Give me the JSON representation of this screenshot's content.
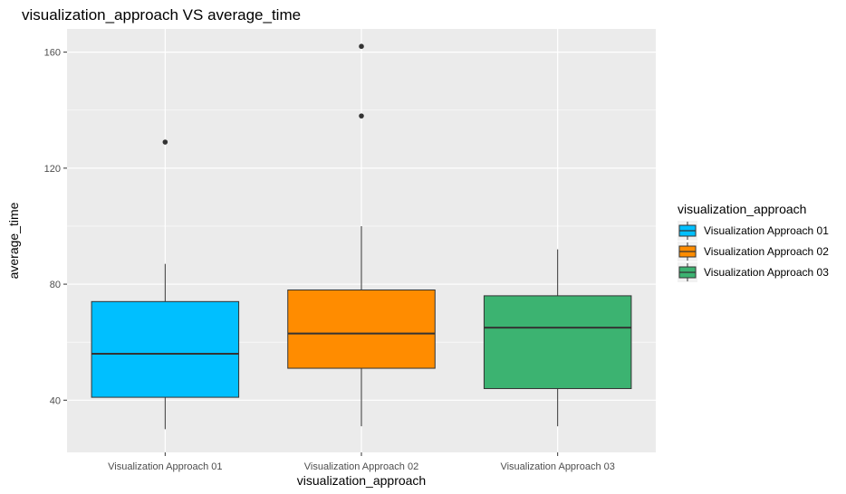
{
  "chart_data": {
    "type": "boxplot",
    "title": "visualization_approach VS average_time",
    "xlabel": "visualization_approach",
    "ylabel": "average_time",
    "ylim": [
      22,
      168
    ],
    "yticks": [
      40,
      80,
      120,
      160
    ],
    "grid": true,
    "legend": {
      "title": "visualization_approach",
      "position": "right"
    },
    "categories": [
      "Visualization Approach 01",
      "Visualization Approach 02",
      "Visualization Approach 03"
    ],
    "boxes": [
      {
        "name": "Visualization Approach 01",
        "whisker_low": 30,
        "q1": 41,
        "median": 56,
        "q3": 74,
        "whisker_high": 87,
        "outliers": [
          129
        ],
        "color": "#00bfff"
      },
      {
        "name": "Visualization Approach 02",
        "whisker_low": 31,
        "q1": 51,
        "median": 63,
        "q3": 78,
        "whisker_high": 100,
        "outliers": [
          138,
          162
        ],
        "color": "#ff8c00"
      },
      {
        "name": "Visualization Approach 03",
        "whisker_low": 31,
        "q1": 44,
        "median": 65,
        "q3": 76,
        "whisker_high": 92,
        "outliers": [],
        "color": "#3cb371"
      }
    ]
  }
}
